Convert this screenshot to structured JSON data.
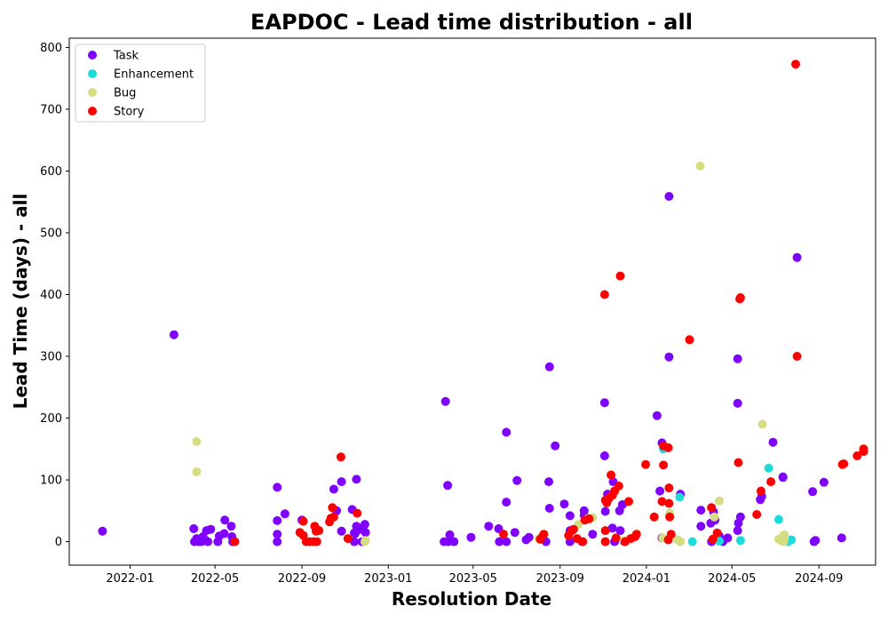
{
  "chart_data": {
    "type": "scatter",
    "title": "EAPDOC - Lead time distribution - all",
    "xlabel": "Resolution Date",
    "ylabel": "Lead Time (days) - all",
    "xlim": [
      "2021-10-07",
      "2024-11-20"
    ],
    "ylim": [
      -38,
      815
    ],
    "x_ticks": [
      "2022-01",
      "2022-05",
      "2022-09",
      "2023-01",
      "2023-05",
      "2023-09",
      "2024-01",
      "2024-05",
      "2024-09"
    ],
    "y_ticks": [
      0,
      100,
      200,
      300,
      400,
      500,
      600,
      700,
      800
    ],
    "grid": false,
    "legend_position": "top-left",
    "series": [
      {
        "name": "Task",
        "color": "#8000ff",
        "points": [
          [
            "2021-11-23",
            17
          ],
          [
            "2022-03-04",
            335
          ],
          [
            "2022-04-01",
            21
          ],
          [
            "2022-04-02",
            0
          ],
          [
            "2022-04-05",
            5
          ],
          [
            "2022-04-08",
            0
          ],
          [
            "2022-04-12",
            0
          ],
          [
            "2022-04-14",
            8
          ],
          [
            "2022-04-17",
            3
          ],
          [
            "2022-04-19",
            18
          ],
          [
            "2022-04-21",
            0
          ],
          [
            "2022-04-25",
            20
          ],
          [
            "2022-05-05",
            0
          ],
          [
            "2022-05-07",
            9
          ],
          [
            "2022-05-14",
            13
          ],
          [
            "2022-05-15",
            35
          ],
          [
            "2022-05-24",
            25
          ],
          [
            "2022-05-25",
            8
          ],
          [
            "2022-05-26",
            0
          ],
          [
            "2022-07-28",
            88
          ],
          [
            "2022-07-28",
            12
          ],
          [
            "2022-07-28",
            0
          ],
          [
            "2022-07-28",
            34
          ],
          [
            "2022-08-08",
            45
          ],
          [
            "2022-09-01",
            35
          ],
          [
            "2022-10-16",
            85
          ],
          [
            "2022-10-20",
            50
          ],
          [
            "2022-10-27",
            17
          ],
          [
            "2022-10-27",
            97
          ],
          [
            "2022-11-11",
            52
          ],
          [
            "2022-11-14",
            0
          ],
          [
            "2022-11-14",
            14
          ],
          [
            "2022-11-15",
            13
          ],
          [
            "2022-11-17",
            25
          ],
          [
            "2022-11-17",
            101
          ],
          [
            "2022-11-22",
            20
          ],
          [
            "2022-11-25",
            0
          ],
          [
            "2022-11-29",
            28
          ],
          [
            "2022-11-30",
            15
          ],
          [
            "2023-03-21",
            0
          ],
          [
            "2023-03-23",
            227
          ],
          [
            "2023-03-26",
            91
          ],
          [
            "2023-03-27",
            0
          ],
          [
            "2023-03-29",
            11
          ],
          [
            "2023-04-04",
            0
          ],
          [
            "2023-04-28",
            7
          ],
          [
            "2023-05-23",
            25
          ],
          [
            "2023-06-06",
            21
          ],
          [
            "2023-06-07",
            0
          ],
          [
            "2023-06-17",
            64
          ],
          [
            "2023-06-17",
            0
          ],
          [
            "2023-06-17",
            177
          ],
          [
            "2023-06-29",
            15
          ],
          [
            "2023-07-02",
            99
          ],
          [
            "2023-07-15",
            3
          ],
          [
            "2023-07-19",
            7
          ],
          [
            "2023-08-06",
            7
          ],
          [
            "2023-08-12",
            0
          ],
          [
            "2023-08-16",
            97
          ],
          [
            "2023-08-17",
            54
          ],
          [
            "2023-08-17",
            283
          ],
          [
            "2023-08-25",
            155
          ],
          [
            "2023-09-07",
            61
          ],
          [
            "2023-09-15",
            42
          ],
          [
            "2023-09-15",
            0
          ],
          [
            "2023-09-15",
            18
          ],
          [
            "2023-10-02",
            0
          ],
          [
            "2023-10-05",
            43
          ],
          [
            "2023-10-05",
            50
          ],
          [
            "2023-10-17",
            12
          ],
          [
            "2023-11-03",
            139
          ],
          [
            "2023-11-03",
            225
          ],
          [
            "2023-11-04",
            0
          ],
          [
            "2023-11-04",
            49
          ],
          [
            "2023-11-07",
            77
          ],
          [
            "2023-11-14",
            22
          ],
          [
            "2023-11-15",
            97
          ],
          [
            "2023-11-17",
            0
          ],
          [
            "2023-11-24",
            50
          ],
          [
            "2023-11-25",
            18
          ],
          [
            "2023-11-28",
            60
          ],
          [
            "2023-12-01",
            0
          ],
          [
            "2024-01-16",
            204
          ],
          [
            "2024-01-20",
            82
          ],
          [
            "2024-01-23",
            160
          ],
          [
            "2024-01-23",
            6
          ],
          [
            "2024-02-02",
            559
          ],
          [
            "2024-02-02",
            299
          ],
          [
            "2024-02-18",
            77
          ],
          [
            "2024-03-18",
            51
          ],
          [
            "2024-03-18",
            25
          ],
          [
            "2024-04-01",
            30
          ],
          [
            "2024-04-02",
            0
          ],
          [
            "2024-04-05",
            48
          ],
          [
            "2024-04-07",
            35
          ],
          [
            "2024-04-13",
            9
          ],
          [
            "2024-04-18",
            0
          ],
          [
            "2024-04-25",
            6
          ],
          [
            "2024-05-09",
            296
          ],
          [
            "2024-05-09",
            224
          ],
          [
            "2024-05-09",
            18
          ],
          [
            "2024-05-10",
            30
          ],
          [
            "2024-05-13",
            40
          ],
          [
            "2024-06-10",
            68
          ],
          [
            "2024-06-12",
            73
          ],
          [
            "2024-06-28",
            161
          ],
          [
            "2024-07-12",
            105
          ],
          [
            "2024-07-12",
            104
          ],
          [
            "2024-08-01",
            460
          ],
          [
            "2024-08-23",
            81
          ],
          [
            "2024-08-25",
            0
          ],
          [
            "2024-08-27",
            2
          ],
          [
            "2024-09-08",
            96
          ],
          [
            "2024-10-03",
            6
          ]
        ]
      },
      {
        "name": "Enhancement",
        "color": "#1ddbdb",
        "points": [
          [
            "2024-01-25",
            150
          ],
          [
            "2024-02-17",
            72
          ],
          [
            "2024-03-06",
            0
          ],
          [
            "2024-04-13",
            1
          ],
          [
            "2024-05-13",
            2
          ],
          [
            "2024-06-22",
            119
          ],
          [
            "2024-07-06",
            36
          ],
          [
            "2024-07-24",
            3
          ],
          [
            "2024-07-19",
            0
          ]
        ]
      },
      {
        "name": "Bug",
        "color": "#d4dd80",
        "points": [
          [
            "2022-04-05",
            162
          ],
          [
            "2022-04-05",
            113
          ],
          [
            "2022-11-29",
            0
          ],
          [
            "2022-11-30",
            2
          ],
          [
            "2023-08-02",
            4
          ],
          [
            "2023-09-27",
            28
          ],
          [
            "2023-10-11",
            38
          ],
          [
            "2023-10-17",
            39
          ],
          [
            "2023-12-01",
            2
          ],
          [
            "2024-01-24",
            6
          ],
          [
            "2024-02-03",
            46
          ],
          [
            "2024-02-14",
            3
          ],
          [
            "2024-02-18",
            0
          ],
          [
            "2024-03-17",
            608
          ],
          [
            "2024-04-13",
            66
          ],
          [
            "2024-04-06",
            40
          ],
          [
            "2024-06-13",
            190
          ],
          [
            "2024-07-06",
            4
          ],
          [
            "2024-07-09",
            2
          ],
          [
            "2024-07-12",
            9
          ],
          [
            "2024-07-13",
            0
          ],
          [
            "2024-07-14",
            5
          ],
          [
            "2024-07-14",
            11
          ]
        ]
      },
      {
        "name": "Story",
        "color": "#ff0000",
        "points": [
          [
            "2022-05-29",
            0
          ],
          [
            "2022-08-29",
            15
          ],
          [
            "2022-09-03",
            33
          ],
          [
            "2022-09-03",
            10
          ],
          [
            "2022-09-07",
            0
          ],
          [
            "2022-09-12",
            0
          ],
          [
            "2022-09-17",
            0
          ],
          [
            "2022-09-19",
            25
          ],
          [
            "2022-09-21",
            20
          ],
          [
            "2022-09-21",
            17
          ],
          [
            "2022-09-22",
            0
          ],
          [
            "2022-09-25",
            18
          ],
          [
            "2022-10-10",
            32
          ],
          [
            "2022-10-12",
            38
          ],
          [
            "2022-10-14",
            55
          ],
          [
            "2022-10-16",
            40
          ],
          [
            "2022-10-26",
            137
          ],
          [
            "2022-11-05",
            5
          ],
          [
            "2022-11-18",
            46
          ],
          [
            "2023-06-13",
            12
          ],
          [
            "2023-08-04",
            4
          ],
          [
            "2023-08-09",
            12
          ],
          [
            "2023-09-13",
            10
          ],
          [
            "2023-09-18",
            18
          ],
          [
            "2023-09-20",
            20
          ],
          [
            "2023-09-25",
            5
          ],
          [
            "2023-10-03",
            0
          ],
          [
            "2023-10-06",
            35
          ],
          [
            "2023-10-12",
            37
          ],
          [
            "2023-11-03",
            400
          ],
          [
            "2023-11-04",
            67
          ],
          [
            "2023-11-04",
            18
          ],
          [
            "2023-11-04",
            0
          ],
          [
            "2023-11-06",
            63
          ],
          [
            "2023-11-09",
            70
          ],
          [
            "2023-11-12",
            108
          ],
          [
            "2023-11-14",
            75
          ],
          [
            "2023-11-17",
            82
          ],
          [
            "2023-11-19",
            6
          ],
          [
            "2023-11-23",
            90
          ],
          [
            "2023-11-25",
            430
          ],
          [
            "2023-12-02",
            0
          ],
          [
            "2023-12-07",
            65
          ],
          [
            "2023-12-10",
            5
          ],
          [
            "2023-12-16",
            8
          ],
          [
            "2023-12-18",
            12
          ],
          [
            "2023-12-31",
            125
          ],
          [
            "2024-01-12",
            40
          ],
          [
            "2024-01-23",
            65
          ],
          [
            "2024-01-25",
            124
          ],
          [
            "2024-01-25",
            155
          ],
          [
            "2024-02-01",
            152
          ],
          [
            "2024-02-01",
            3
          ],
          [
            "2024-02-02",
            87
          ],
          [
            "2024-02-02",
            62
          ],
          [
            "2024-02-03",
            40
          ],
          [
            "2024-02-05",
            12
          ],
          [
            "2024-03-02",
            327
          ],
          [
            "2024-04-02",
            55
          ],
          [
            "2024-04-04",
            4
          ],
          [
            "2024-04-10",
            14
          ],
          [
            "2024-05-10",
            128
          ],
          [
            "2024-05-12",
            393
          ],
          [
            "2024-05-13",
            395
          ],
          [
            "2024-06-05",
            44
          ],
          [
            "2024-06-11",
            82
          ],
          [
            "2024-06-25",
            97
          ],
          [
            "2024-07-30",
            773
          ],
          [
            "2024-08-01",
            300
          ],
          [
            "2024-10-04",
            125
          ],
          [
            "2024-10-06",
            126
          ],
          [
            "2024-10-25",
            139
          ],
          [
            "2024-11-03",
            146
          ],
          [
            "2024-11-03",
            150
          ]
        ]
      }
    ]
  }
}
